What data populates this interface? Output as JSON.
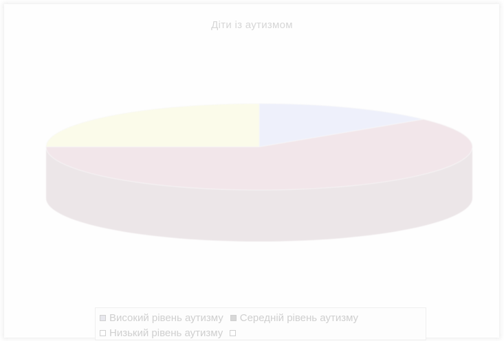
{
  "chart_data": {
    "type": "pie",
    "title": "Діти із аутизмом",
    "slices": [
      {
        "label": "Високий рівень аутизму",
        "value": 14,
        "color": "#eef0fb"
      },
      {
        "label": "Середній рівень аутизму",
        "value": 61,
        "color": "#f2e6ea"
      },
      {
        "label": "Низький рівень аутизму",
        "value": 25,
        "color": "#fbfbea"
      }
    ],
    "legend": {
      "position": "bottom",
      "entries": [
        "Високий рівень аутизму",
        "Середній рівень аутизму",
        "Низький рівень аутизму",
        ""
      ]
    },
    "style": "3d",
    "side_color": "#ece6e8"
  }
}
